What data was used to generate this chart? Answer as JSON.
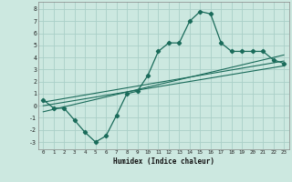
{
  "title": "",
  "xlabel": "Humidex (Indice chaleur)",
  "background_color": "#cce8e0",
  "grid_color": "#aacfc8",
  "line_color": "#1a6b5a",
  "xlim": [
    -0.5,
    23.5
  ],
  "ylim": [
    -3.6,
    8.6
  ],
  "xticks": [
    0,
    1,
    2,
    3,
    4,
    5,
    6,
    7,
    8,
    9,
    10,
    11,
    12,
    13,
    14,
    15,
    16,
    17,
    18,
    19,
    20,
    21,
    22,
    23
  ],
  "yticks": [
    -3,
    -2,
    -1,
    0,
    1,
    2,
    3,
    4,
    5,
    6,
    7,
    8
  ],
  "curve_x": [
    0,
    1,
    2,
    3,
    4,
    5,
    6,
    7,
    8,
    9,
    10,
    11,
    12,
    13,
    14,
    15,
    16,
    17,
    18,
    19,
    20,
    21,
    22,
    23
  ],
  "curve_y": [
    0.5,
    -0.2,
    -0.2,
    -1.2,
    -2.2,
    -3.0,
    -2.5,
    -0.8,
    1.0,
    1.2,
    2.5,
    4.5,
    5.2,
    5.2,
    7.0,
    7.8,
    7.6,
    5.2,
    4.5,
    4.5,
    4.5,
    4.5,
    3.8,
    3.5
  ],
  "line1_x": [
    0,
    23
  ],
  "line1_y": [
    -0.5,
    4.2
  ],
  "line2_x": [
    0,
    23
  ],
  "line2_y": [
    0.0,
    3.3
  ],
  "line3_x": [
    0,
    23
  ],
  "line3_y": [
    0.3,
    3.7
  ]
}
